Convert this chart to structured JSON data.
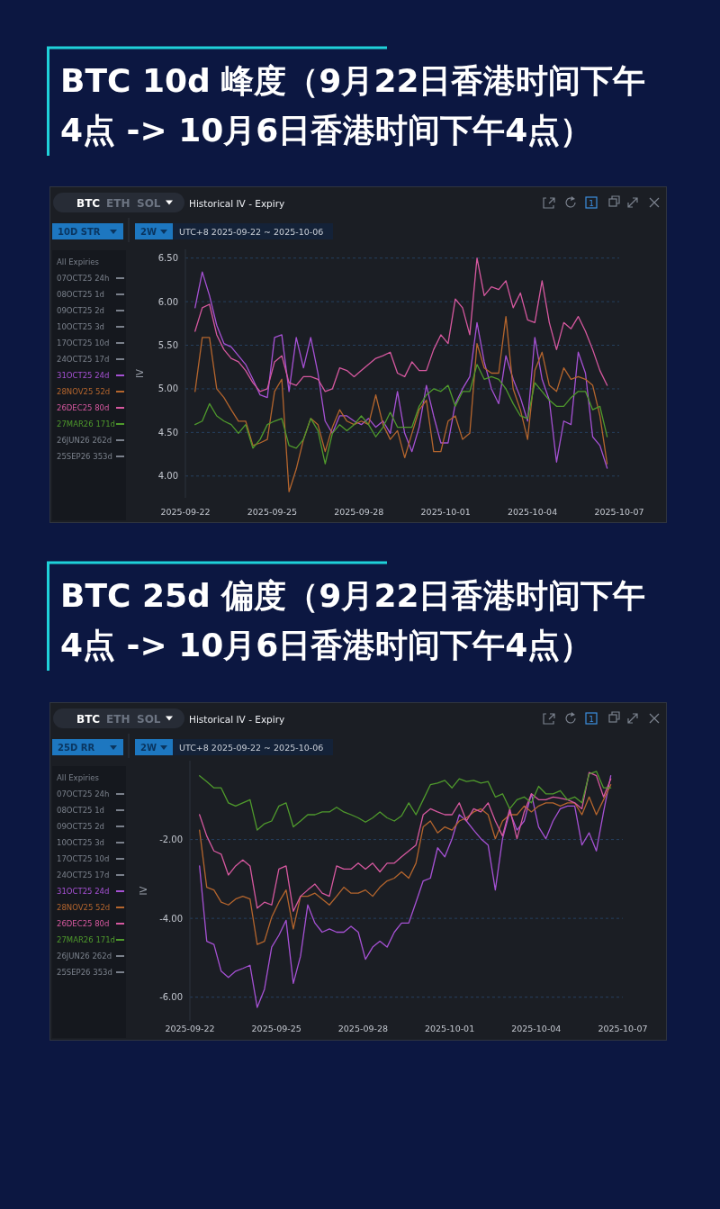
{
  "chart_data": [
    {
      "type": "line",
      "title": "BTC 10d 峰度（9月22日香港时间下午4点 -> 10月6日香港时间下午4点）",
      "ylabel": "IV",
      "legend_title": "All Expiries",
      "legend": "left",
      "grid": "y",
      "x": [
        "2025-09-22T08:00",
        "2025-09-22T14:00",
        "2025-09-22T20:00",
        "2025-09-23T02:00",
        "2025-09-23T08:00",
        "2025-09-23T14:00",
        "2025-09-23T20:00",
        "2025-09-24T02:00",
        "2025-09-24T08:00",
        "2025-09-24T14:00",
        "2025-09-24T20:00",
        "2025-09-25T02:00",
        "2025-09-25T08:00",
        "2025-09-25T14:00",
        "2025-09-25T20:00",
        "2025-09-26T02:00",
        "2025-09-26T08:00",
        "2025-09-26T14:00",
        "2025-09-26T20:00",
        "2025-09-27T02:00",
        "2025-09-27T08:00",
        "2025-09-27T14:00",
        "2025-09-27T20:00",
        "2025-09-28T02:00",
        "2025-09-28T08:00",
        "2025-09-28T14:00",
        "2025-09-28T20:00",
        "2025-09-29T02:00",
        "2025-09-29T08:00",
        "2025-09-29T14:00",
        "2025-09-29T20:00",
        "2025-09-30T02:00",
        "2025-09-30T08:00",
        "2025-09-30T14:00",
        "2025-09-30T20:00",
        "2025-10-01T02:00",
        "2025-10-01T08:00",
        "2025-10-01T14:00",
        "2025-10-01T20:00",
        "2025-10-02T02:00",
        "2025-10-02T08:00",
        "2025-10-02T14:00",
        "2025-10-02T20:00",
        "2025-10-03T02:00",
        "2025-10-03T08:00",
        "2025-10-03T14:00",
        "2025-10-03T20:00",
        "2025-10-04T02:00",
        "2025-10-04T08:00",
        "2025-10-04T14:00",
        "2025-10-04T20:00",
        "2025-10-05T02:00",
        "2025-10-05T08:00",
        "2025-10-05T14:00",
        "2025-10-05T20:00",
        "2025-10-06T02:00",
        "2025-10-06T08:00",
        "2025-10-06T14:00"
      ],
      "xlim": [
        "2025-09-22",
        "2025-10-07"
      ],
      "xticks": [
        "2025-09-22",
        "2025-09-25",
        "2025-09-28",
        "2025-10-01",
        "2025-10-04",
        "2025-10-07"
      ],
      "ylim": [
        3.75,
        6.6
      ],
      "yticks": [
        {
          "value": 4,
          "label": "4.00"
        },
        {
          "value": 4.5,
          "label": "4.50"
        },
        {
          "value": 5,
          "label": "5.00"
        },
        {
          "value": 5.5,
          "label": "5.50"
        },
        {
          "value": 6,
          "label": "6.00"
        },
        {
          "value": 6.5,
          "label": "6.50"
        }
      ],
      "series": [
        {
          "name": "07OCT25 24h",
          "color": "#7a808b",
          "values": [
            null,
            null,
            null,
            null,
            null,
            null,
            null,
            null,
            null,
            null,
            null,
            null,
            null,
            null,
            null,
            null,
            null,
            null,
            null,
            null,
            null,
            null,
            null,
            null,
            null,
            null,
            null,
            null,
            null,
            null,
            null,
            null,
            null,
            null,
            null,
            null,
            null,
            null,
            null,
            null,
            null,
            null,
            null,
            null,
            null,
            null,
            null,
            null,
            null,
            null,
            null,
            null,
            null,
            null,
            null,
            null,
            null,
            null
          ]
        },
        {
          "name": "08OCT25 1d",
          "color": "#7a808b",
          "values": [
            null,
            null,
            null,
            null,
            null,
            null,
            null,
            null,
            null,
            null,
            null,
            null,
            null,
            null,
            null,
            null,
            null,
            null,
            null,
            null,
            null,
            null,
            null,
            null,
            null,
            null,
            null,
            null,
            null,
            null,
            null,
            null,
            null,
            null,
            null,
            null,
            null,
            null,
            null,
            null,
            null,
            null,
            null,
            null,
            null,
            null,
            null,
            null,
            null,
            null,
            null,
            null,
            null,
            null,
            null,
            null,
            null,
            null
          ]
        },
        {
          "name": "09OCT25 2d",
          "color": "#7a808b",
          "values": [
            null,
            null,
            null,
            null,
            null,
            null,
            null,
            null,
            null,
            null,
            null,
            null,
            null,
            null,
            null,
            null,
            null,
            null,
            null,
            null,
            null,
            null,
            null,
            null,
            null,
            null,
            null,
            null,
            null,
            null,
            null,
            null,
            null,
            null,
            null,
            null,
            null,
            null,
            null,
            null,
            null,
            null,
            null,
            null,
            null,
            null,
            null,
            null,
            null,
            null,
            null,
            null,
            null,
            null,
            null,
            null,
            null,
            null
          ]
        },
        {
          "name": "10OCT25 3d",
          "color": "#7a808b",
          "values": [
            null,
            null,
            null,
            null,
            null,
            null,
            null,
            null,
            null,
            null,
            null,
            null,
            null,
            null,
            null,
            null,
            null,
            null,
            null,
            null,
            null,
            null,
            null,
            null,
            null,
            null,
            null,
            null,
            null,
            null,
            null,
            null,
            null,
            null,
            null,
            null,
            null,
            null,
            null,
            null,
            null,
            null,
            null,
            null,
            null,
            null,
            null,
            null,
            null,
            null,
            null,
            null,
            null,
            null,
            null,
            null,
            null,
            null
          ]
        },
        {
          "name": "17OCT25 10d",
          "color": "#7a808b",
          "values": [
            null,
            null,
            null,
            null,
            null,
            null,
            null,
            null,
            null,
            null,
            null,
            null,
            null,
            null,
            null,
            null,
            null,
            null,
            null,
            null,
            null,
            null,
            null,
            null,
            null,
            null,
            null,
            null,
            null,
            null,
            null,
            null,
            null,
            null,
            null,
            null,
            null,
            null,
            null,
            null,
            null,
            null,
            null,
            null,
            null,
            null,
            null,
            null,
            null,
            null,
            null,
            null,
            null,
            null,
            null,
            null,
            null,
            null
          ]
        },
        {
          "name": "24OCT25 17d",
          "color": "#7a808b",
          "values": [
            null,
            null,
            null,
            null,
            null,
            null,
            null,
            null,
            null,
            null,
            null,
            null,
            null,
            null,
            null,
            null,
            null,
            null,
            null,
            null,
            null,
            null,
            null,
            null,
            null,
            null,
            null,
            null,
            null,
            null,
            null,
            null,
            null,
            null,
            null,
            null,
            null,
            null,
            null,
            null,
            null,
            null,
            null,
            null,
            null,
            null,
            null,
            null,
            null,
            null,
            null,
            null,
            null,
            null,
            null,
            null,
            null,
            null
          ]
        },
        {
          "name": "31OCT25 24d",
          "color": "#a651d4",
          "values": [
            5.93,
            6.34,
            6.07,
            5.73,
            5.52,
            5.48,
            5.38,
            5.28,
            5.11,
            4.93,
            4.9,
            5.59,
            5.62,
            4.97,
            5.59,
            5.24,
            5.59,
            5.18,
            4.63,
            4.49,
            4.69,
            4.69,
            4.63,
            4.59,
            4.66,
            4.56,
            4.63,
            4.49,
            4.97,
            4.49,
            4.28,
            4.56,
            5.04,
            4.69,
            4.38,
            4.38,
            4.83,
            5.0,
            5.14,
            5.76,
            5.31,
            5.0,
            4.83,
            5.38,
            5.11,
            4.9,
            4.63,
            5.59,
            5.11,
            4.87,
            4.16,
            4.63,
            4.59,
            5.42,
            5.18,
            4.45,
            4.35,
            4.09
          ]
        },
        {
          "name": "28NOV25 52d",
          "color": "#b4652d",
          "values": [
            4.97,
            5.59,
            5.59,
            5.0,
            4.9,
            4.76,
            4.63,
            4.63,
            4.35,
            4.38,
            4.42,
            4.97,
            5.11,
            3.82,
            4.08,
            4.42,
            4.66,
            4.59,
            4.28,
            4.56,
            4.76,
            4.63,
            4.59,
            4.63,
            4.59,
            4.93,
            4.59,
            4.42,
            4.52,
            4.21,
            4.49,
            4.76,
            4.87,
            4.28,
            4.28,
            4.63,
            4.69,
            4.42,
            4.49,
            5.52,
            5.24,
            5.18,
            5.18,
            5.83,
            5.0,
            4.76,
            4.42,
            5.21,
            5.42,
            5.04,
            4.97,
            5.24,
            5.11,
            5.14,
            5.11,
            5.04,
            4.69,
            4.14
          ]
        },
        {
          "name": "26DEC25 80d",
          "color": "#d6589f",
          "values": [
            5.66,
            5.93,
            5.97,
            5.62,
            5.45,
            5.35,
            5.31,
            5.21,
            5.07,
            4.97,
            5.0,
            5.31,
            5.38,
            5.07,
            5.04,
            5.14,
            5.14,
            5.11,
            4.97,
            5.0,
            5.24,
            5.21,
            5.14,
            5.21,
            5.28,
            5.35,
            5.38,
            5.42,
            5.18,
            5.14,
            5.31,
            5.21,
            5.21,
            5.45,
            5.62,
            5.52,
            6.03,
            5.93,
            5.62,
            6.5,
            6.07,
            6.17,
            6.14,
            6.24,
            5.93,
            6.1,
            5.79,
            5.76,
            6.24,
            5.76,
            5.45,
            5.76,
            5.69,
            5.83,
            5.66,
            5.45,
            5.21,
            5.04
          ]
        },
        {
          "name": "27MAR26 171d",
          "color": "#4f9a2c",
          "values": [
            4.59,
            4.63,
            4.83,
            4.69,
            4.63,
            4.59,
            4.49,
            4.59,
            4.32,
            4.42,
            4.59,
            4.63,
            4.66,
            4.35,
            4.32,
            4.42,
            4.66,
            4.52,
            4.14,
            4.49,
            4.59,
            4.52,
            4.59,
            4.69,
            4.59,
            4.45,
            4.56,
            4.73,
            4.56,
            4.56,
            4.56,
            4.8,
            4.93,
            5.0,
            4.97,
            5.04,
            4.8,
            4.97,
            4.97,
            5.28,
            5.11,
            5.14,
            5.11,
            5.0,
            4.83,
            4.69,
            4.66,
            5.07,
            4.97,
            4.87,
            4.8,
            4.8,
            4.9,
            4.97,
            4.97,
            4.76,
            4.8,
            4.45
          ]
        },
        {
          "name": "26JUN26 262d",
          "color": "#7a808b",
          "values": [
            null,
            null,
            null,
            null,
            null,
            null,
            null,
            null,
            null,
            null,
            null,
            null,
            null,
            null,
            null,
            null,
            null,
            null,
            null,
            null,
            null,
            null,
            null,
            null,
            null,
            null,
            null,
            null,
            null,
            null,
            null,
            null,
            null,
            null,
            null,
            null,
            null,
            null,
            null,
            null,
            null,
            null,
            null,
            null,
            null,
            null,
            null,
            null,
            null,
            null,
            null,
            null,
            null,
            null,
            null,
            null,
            null,
            null
          ]
        },
        {
          "name": "25SEP26 353d",
          "color": "#7a808b",
          "values": [
            null,
            null,
            null,
            null,
            null,
            null,
            null,
            null,
            null,
            null,
            null,
            null,
            null,
            null,
            null,
            null,
            null,
            null,
            null,
            null,
            null,
            null,
            null,
            null,
            null,
            null,
            null,
            null,
            null,
            null,
            null,
            null,
            null,
            null,
            null,
            null,
            null,
            null,
            null,
            null,
            null,
            null,
            null,
            null,
            null,
            null,
            null,
            null,
            null,
            null,
            null,
            null,
            null,
            null,
            null,
            null,
            null,
            null
          ]
        }
      ],
      "annotations": [
        "BTC",
        "ETH",
        "SOL",
        "Historical IV - Expiry",
        "1",
        "10D STR",
        "2W",
        "UTC+8 2025-09-22 ~ 2025-10-06"
      ]
    },
    {
      "type": "line",
      "title": "BTC 25d 偏度（9月22日香港时间下午4点 -> 10月6日香港时间下午4点）",
      "ylabel": "IV",
      "legend_title": "All Expiries",
      "legend": "left",
      "grid": "y",
      "x": [
        "2025-09-22T08:00",
        "2025-09-22T14:00",
        "2025-09-22T20:00",
        "2025-09-23T02:00",
        "2025-09-23T08:00",
        "2025-09-23T14:00",
        "2025-09-23T20:00",
        "2025-09-24T02:00",
        "2025-09-24T08:00",
        "2025-09-24T14:00",
        "2025-09-24T20:00",
        "2025-09-25T02:00",
        "2025-09-25T08:00",
        "2025-09-25T14:00",
        "2025-09-25T20:00",
        "2025-09-26T02:00",
        "2025-09-26T08:00",
        "2025-09-26T14:00",
        "2025-09-26T20:00",
        "2025-09-27T02:00",
        "2025-09-27T08:00",
        "2025-09-27T14:00",
        "2025-09-27T20:00",
        "2025-09-28T02:00",
        "2025-09-28T08:00",
        "2025-09-28T14:00",
        "2025-09-28T20:00",
        "2025-09-29T02:00",
        "2025-09-29T08:00",
        "2025-09-29T14:00",
        "2025-09-29T20:00",
        "2025-09-30T02:00",
        "2025-09-30T08:00",
        "2025-09-30T14:00",
        "2025-09-30T20:00",
        "2025-10-01T02:00",
        "2025-10-01T08:00",
        "2025-10-01T14:00",
        "2025-10-01T20:00",
        "2025-10-02T02:00",
        "2025-10-02T08:00",
        "2025-10-02T14:00",
        "2025-10-02T20:00",
        "2025-10-03T02:00",
        "2025-10-03T08:00",
        "2025-10-03T14:00",
        "2025-10-03T20:00",
        "2025-10-04T02:00",
        "2025-10-04T08:00",
        "2025-10-04T14:00",
        "2025-10-04T20:00",
        "2025-10-05T02:00",
        "2025-10-05T08:00",
        "2025-10-05T14:00",
        "2025-10-05T20:00",
        "2025-10-06T02:00",
        "2025-10-06T08:00",
        "2025-10-06T14:00"
      ],
      "xlim": [
        "2025-09-22",
        "2025-10-07"
      ],
      "xticks": [
        "2025-09-22",
        "2025-09-25",
        "2025-09-28",
        "2025-10-01",
        "2025-10-04",
        "2025-10-07"
      ],
      "ylim": [
        -6.6,
        0
      ],
      "yticks": [
        {
          "value": -6,
          "label": "-6.00"
        },
        {
          "value": -4,
          "label": "-4.00"
        },
        {
          "value": -2,
          "label": "-2.00"
        }
      ],
      "series": [
        {
          "name": "07OCT25 24h",
          "color": "#7a808b",
          "values": [
            null,
            null,
            null,
            null,
            null,
            null,
            null,
            null,
            null,
            null,
            null,
            null,
            null,
            null,
            null,
            null,
            null,
            null,
            null,
            null,
            null,
            null,
            null,
            null,
            null,
            null,
            null,
            null,
            null,
            null,
            null,
            null,
            null,
            null,
            null,
            null,
            null,
            null,
            null,
            null,
            null,
            null,
            null,
            null,
            null,
            null,
            null,
            null,
            null,
            null,
            null,
            null,
            null,
            null,
            null,
            null,
            null,
            null
          ]
        },
        {
          "name": "08OCT25 1d",
          "color": "#7a808b",
          "values": [
            null,
            null,
            null,
            null,
            null,
            null,
            null,
            null,
            null,
            null,
            null,
            null,
            null,
            null,
            null,
            null,
            null,
            null,
            null,
            null,
            null,
            null,
            null,
            null,
            null,
            null,
            null,
            null,
            null,
            null,
            null,
            null,
            null,
            null,
            null,
            null,
            null,
            null,
            null,
            null,
            null,
            null,
            null,
            null,
            null,
            null,
            null,
            null,
            null,
            null,
            null,
            null,
            null,
            null,
            null,
            null,
            null,
            null
          ]
        },
        {
          "name": "09OCT25 2d",
          "color": "#7a808b",
          "values": [
            null,
            null,
            null,
            null,
            null,
            null,
            null,
            null,
            null,
            null,
            null,
            null,
            null,
            null,
            null,
            null,
            null,
            null,
            null,
            null,
            null,
            null,
            null,
            null,
            null,
            null,
            null,
            null,
            null,
            null,
            null,
            null,
            null,
            null,
            null,
            null,
            null,
            null,
            null,
            null,
            null,
            null,
            null,
            null,
            null,
            null,
            null,
            null,
            null,
            null,
            null,
            null,
            null,
            null,
            null,
            null,
            null,
            null
          ]
        },
        {
          "name": "10OCT25 3d",
          "color": "#7a808b",
          "values": [
            null,
            null,
            null,
            null,
            null,
            null,
            null,
            null,
            null,
            null,
            null,
            null,
            null,
            null,
            null,
            null,
            null,
            null,
            null,
            null,
            null,
            null,
            null,
            null,
            null,
            null,
            null,
            null,
            null,
            null,
            null,
            null,
            null,
            null,
            null,
            null,
            null,
            null,
            null,
            null,
            null,
            null,
            null,
            null,
            null,
            null,
            null,
            null,
            null,
            null,
            null,
            null,
            null,
            null,
            null,
            null,
            null,
            null
          ]
        },
        {
          "name": "17OCT25 10d",
          "color": "#7a808b",
          "values": [
            null,
            null,
            null,
            null,
            null,
            null,
            null,
            null,
            null,
            null,
            null,
            null,
            null,
            null,
            null,
            null,
            null,
            null,
            null,
            null,
            null,
            null,
            null,
            null,
            null,
            null,
            null,
            null,
            null,
            null,
            null,
            null,
            null,
            null,
            null,
            null,
            null,
            null,
            null,
            null,
            null,
            null,
            null,
            null,
            null,
            null,
            null,
            null,
            null,
            null,
            null,
            null,
            null,
            null,
            null,
            null,
            null,
            null
          ]
        },
        {
          "name": "24OCT25 17d",
          "color": "#7a808b",
          "values": [
            null,
            null,
            null,
            null,
            null,
            null,
            null,
            null,
            null,
            null,
            null,
            null,
            null,
            null,
            null,
            null,
            null,
            null,
            null,
            null,
            null,
            null,
            null,
            null,
            null,
            null,
            null,
            null,
            null,
            null,
            null,
            null,
            null,
            null,
            null,
            null,
            null,
            null,
            null,
            null,
            null,
            null,
            null,
            null,
            null,
            null,
            null,
            null,
            null,
            null,
            null,
            null,
            null,
            null,
            null,
            null,
            null,
            null
          ]
        },
        {
          "name": "31OCT25 24d",
          "color": "#a651d4",
          "values": [
            -2.67,
            -4.58,
            -4.66,
            -5.34,
            -5.5,
            -5.34,
            -5.27,
            -5.19,
            -6.26,
            -5.8,
            -4.73,
            -4.43,
            -4.05,
            -5.65,
            -4.96,
            -3.66,
            -4.12,
            -4.35,
            -4.27,
            -4.35,
            -4.35,
            -4.2,
            -4.35,
            -5.04,
            -4.73,
            -4.58,
            -4.73,
            -4.35,
            -4.12,
            -4.12,
            -3.59,
            -3.05,
            -2.98,
            -2.21,
            -2.44,
            -1.98,
            -1.37,
            -1.53,
            -1.76,
            -1.98,
            -2.14,
            -3.28,
            -1.98,
            -1.3,
            -1.76,
            -1.53,
            -0.84,
            -1.68,
            -1.98,
            -1.53,
            -1.22,
            -1.15,
            -1.15,
            -2.14,
            -1.83,
            -2.29,
            -1.3,
            -0.38
          ]
        },
        {
          "name": "28NOV25 52d",
          "color": "#b4652d",
          "values": [
            -1.76,
            -3.21,
            -3.28,
            -3.59,
            -3.66,
            -3.51,
            -3.44,
            -3.51,
            -4.66,
            -4.58,
            -3.97,
            -3.59,
            -3.28,
            -4.27,
            -3.44,
            -3.44,
            -3.36,
            -3.51,
            -3.66,
            -3.44,
            -3.21,
            -3.36,
            -3.36,
            -3.28,
            -3.44,
            -3.21,
            -3.05,
            -2.98,
            -2.82,
            -2.98,
            -2.6,
            -1.68,
            -1.53,
            -1.83,
            -1.68,
            -1.76,
            -1.53,
            -1.45,
            -1.3,
            -1.22,
            -1.37,
            -1.98,
            -1.53,
            -1.37,
            -1.37,
            -1.15,
            -1.3,
            -1.15,
            -1.07,
            -1.07,
            -1.15,
            -1.07,
            -1.07,
            -1.37,
            -0.92,
            -1.37,
            -0.99,
            -0.61
          ]
        },
        {
          "name": "26DEC25 80d",
          "color": "#d6589f",
          "values": [
            -1.37,
            -1.91,
            -2.29,
            -2.37,
            -2.9,
            -2.67,
            -2.52,
            -2.67,
            -3.74,
            -3.59,
            -3.66,
            -2.75,
            -2.67,
            -3.82,
            -3.44,
            -3.28,
            -3.13,
            -3.36,
            -3.44,
            -2.67,
            -2.75,
            -2.75,
            -2.6,
            -2.75,
            -2.6,
            -2.82,
            -2.6,
            -2.6,
            -2.44,
            -2.29,
            -2.14,
            -1.37,
            -1.22,
            -1.3,
            -1.37,
            -1.37,
            -1.07,
            -1.53,
            -1.22,
            -1.3,
            -1.07,
            -1.53,
            -1.91,
            -1.22,
            -1.98,
            -1.3,
            -0.84,
            -0.99,
            -0.99,
            -0.92,
            -0.95,
            -0.99,
            -1.07,
            -1.22,
            -0.3,
            -0.38,
            -0.92,
            -0.46
          ]
        },
        {
          "name": "27MAR26 171d",
          "color": "#4f9a2c",
          "values": [
            -0.38,
            -0.53,
            -0.69,
            -0.69,
            -1.07,
            -1.15,
            -1.07,
            -0.99,
            -1.76,
            -1.6,
            -1.53,
            -1.15,
            -1.07,
            -1.68,
            -1.53,
            -1.37,
            -1.37,
            -1.3,
            -1.3,
            -1.18,
            -1.3,
            -1.37,
            -1.45,
            -1.56,
            -1.45,
            -1.3,
            -1.45,
            -1.53,
            -1.4,
            -1.07,
            -1.37,
            -0.99,
            -0.61,
            -0.57,
            -0.5,
            -0.69,
            -0.46,
            -0.53,
            -0.5,
            -0.57,
            -0.53,
            -0.92,
            -0.84,
            -1.22,
            -0.99,
            -0.92,
            -1.07,
            -0.65,
            -0.84,
            -0.84,
            -0.76,
            -0.99,
            -0.92,
            -1.07,
            -0.34,
            -0.27,
            -0.69,
            -0.69
          ]
        },
        {
          "name": "26JUN26 262d",
          "color": "#7a808b",
          "values": [
            null,
            null,
            null,
            null,
            null,
            null,
            null,
            null,
            null,
            null,
            null,
            null,
            null,
            null,
            null,
            null,
            null,
            null,
            null,
            null,
            null,
            null,
            null,
            null,
            null,
            null,
            null,
            null,
            null,
            null,
            null,
            null,
            null,
            null,
            null,
            null,
            null,
            null,
            null,
            null,
            null,
            null,
            null,
            null,
            null,
            null,
            null,
            null,
            null,
            null,
            null,
            null,
            null,
            null,
            null,
            null,
            null,
            null
          ]
        },
        {
          "name": "25SEP26 353d",
          "color": "#7a808b",
          "values": [
            null,
            null,
            null,
            null,
            null,
            null,
            null,
            null,
            null,
            null,
            null,
            null,
            null,
            null,
            null,
            null,
            null,
            null,
            null,
            null,
            null,
            null,
            null,
            null,
            null,
            null,
            null,
            null,
            null,
            null,
            null,
            null,
            null,
            null,
            null,
            null,
            null,
            null,
            null,
            null,
            null,
            null,
            null,
            null,
            null,
            null,
            null,
            null,
            null,
            null,
            null,
            null,
            null,
            null,
            null,
            null,
            null,
            null
          ]
        }
      ],
      "annotations": [
        "BTC",
        "ETH",
        "SOL",
        "Historical IV - Expiry",
        "1",
        "25D RR",
        "2W",
        "UTC+8 2025-09-22 ~ 2025-10-06"
      ]
    }
  ]
}
